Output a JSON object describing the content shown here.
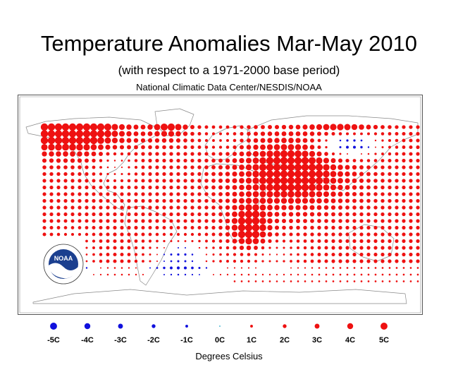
{
  "title": "Temperature Anomalies Mar-May 2010",
  "subtitle": "(with respect to a 1971-2000 base period)",
  "source": "National Climatic Data Center/NESDIS/NOAA",
  "logo": {
    "text": "NOAA",
    "ring_text": "NATIONAL OCEANIC AND ATMOSPHERIC ADMINISTRATION · U.S. DEPARTMENT OF COMMERCE"
  },
  "colors": {
    "warm": "#ee1111",
    "cool": "#1111dd",
    "neutral": "#22aacc",
    "land": "#888888"
  },
  "legend": {
    "title": "Degrees Celsius",
    "items": [
      {
        "label": "-5C",
        "value": -5
      },
      {
        "label": "-4C",
        "value": -4
      },
      {
        "label": "-3C",
        "value": -3
      },
      {
        "label": "-2C",
        "value": -2
      },
      {
        "label": "-1C",
        "value": -1
      },
      {
        "label": "0C",
        "value": 0
      },
      {
        "label": "1C",
        "value": 1
      },
      {
        "label": "2C",
        "value": 2
      },
      {
        "label": "3C",
        "value": 3
      },
      {
        "label": "4C",
        "value": 4
      },
      {
        "label": "5C",
        "value": 5
      }
    ]
  }
}
